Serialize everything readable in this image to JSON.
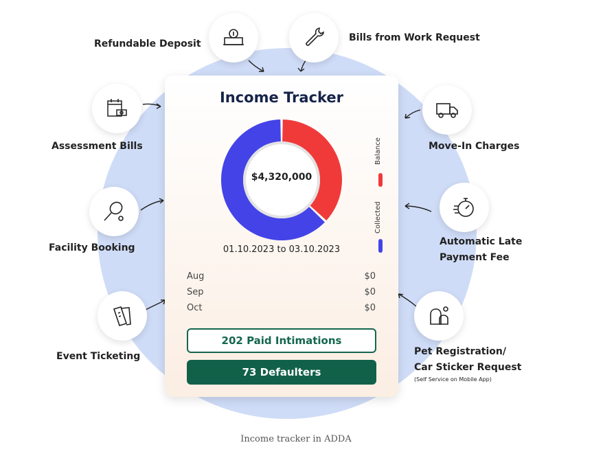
{
  "card": {
    "title": "Income Tracker",
    "total": "$4,320,000",
    "date_range": "01.10.2023 to 03.10.2023",
    "months": [
      {
        "month": "Aug",
        "amount": "$0"
      },
      {
        "month": "Sep",
        "amount": "$0"
      },
      {
        "month": "Oct",
        "amount": "$0"
      }
    ],
    "paid_button": "202 Paid Intimations",
    "defaulters_button": "73 Defaulters"
  },
  "chart_data": {
    "type": "pie",
    "variant": "donut",
    "center_label": "$4,320,000",
    "series": [
      {
        "name": "Balance",
        "value": 0.37,
        "color": "#f03a3a"
      },
      {
        "name": "Collected",
        "value": 0.63,
        "color": "#4443e8"
      }
    ],
    "legend": "right, vertical"
  },
  "features": [
    {
      "label": "Refundable Deposit",
      "icon": "cash-icon"
    },
    {
      "label": "Bills from Work Request",
      "icon": "wrench-icon"
    },
    {
      "label": "Assessment Bills",
      "icon": "calendar-bill-icon"
    },
    {
      "label": "Move-In Charges",
      "icon": "truck-icon"
    },
    {
      "label": "Facility Booking",
      "icon": "tennis-icon"
    },
    {
      "label": "Automatic Late",
      "label2": "Payment Fee",
      "icon": "stopwatch-icon"
    },
    {
      "label": "Event Ticketing",
      "icon": "ticket-icon"
    },
    {
      "label": "Pet Registration/",
      "label2": "Car Sticker Request",
      "note": "(Self Service on Mobile App)",
      "icon": "pet-icon"
    }
  ],
  "caption": "Income tracker in ADDA",
  "colors": {
    "navy": "#16244a",
    "green": "#116149",
    "blob": "#cfdcf7"
  }
}
